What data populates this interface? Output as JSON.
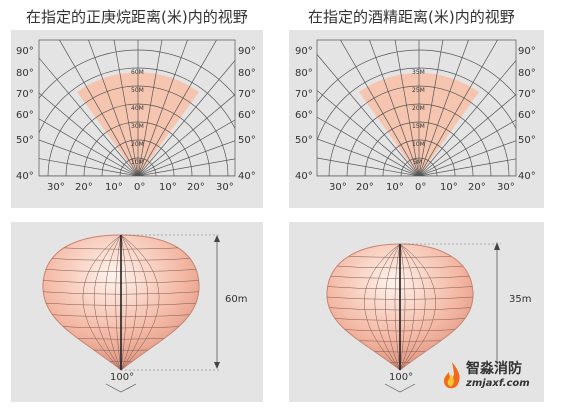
{
  "titles": {
    "left": "在指定的正庚烷距离(米)内的视野",
    "right": "在指定的酒精距离(米)内的视野"
  },
  "polar_left": {
    "elevation_labels": [
      "90°",
      "80°",
      "70°",
      "60°",
      "50°",
      "40°"
    ],
    "azimuth_labels": [
      "30°",
      "20°",
      "10°",
      "0°",
      "10°",
      "20°",
      "30°"
    ],
    "distance_labels": [
      "10M",
      "20M",
      "30M",
      "40M",
      "50M",
      "60M"
    ],
    "max_distance": 60
  },
  "polar_right": {
    "elevation_labels": [
      "90°",
      "80°",
      "70°",
      "60°",
      "50°",
      "40°"
    ],
    "azimuth_labels": [
      "30°",
      "20°",
      "10°",
      "0°",
      "10°",
      "20°",
      "30°"
    ],
    "distance_labels": [
      "5M",
      "10M",
      "15M",
      "20M",
      "25M",
      "35M"
    ],
    "max_distance": 35
  },
  "cone_left": {
    "range_label": "60m",
    "angle_label": "100°"
  },
  "cone_right": {
    "range_label": "35m",
    "angle_label": "100°"
  },
  "logo": {
    "name": "智淼消防",
    "url": "zmjaxf.com"
  },
  "colors": {
    "fov_fill": "#f6c5b0",
    "panel_bg": "#e4e4e4",
    "grid": "#555555",
    "cone_edge": "#c98470"
  }
}
